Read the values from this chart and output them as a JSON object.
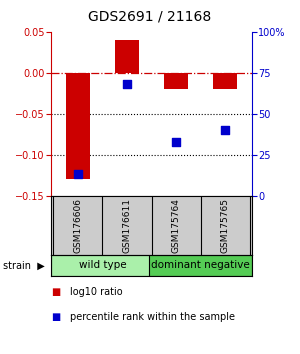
{
  "title": "GDS2691 / 21168",
  "samples": [
    "GSM176606",
    "GSM176611",
    "GSM175764",
    "GSM175765"
  ],
  "log10_ratio": [
    -0.13,
    0.04,
    -0.02,
    -0.02
  ],
  "percentile_rank": [
    13,
    68,
    33,
    40
  ],
  "ylim_left": [
    -0.15,
    0.05
  ],
  "ylim_right": [
    0,
    100
  ],
  "yticks_left": [
    -0.15,
    -0.1,
    -0.05,
    0,
    0.05
  ],
  "yticks_right": [
    0,
    25,
    50,
    75,
    100
  ],
  "ytick_labels_right": [
    "0",
    "25",
    "50",
    "75",
    "100%"
  ],
  "hlines": [
    -0.05,
    -0.1
  ],
  "groups": [
    {
      "label": "wild type",
      "samples": [
        0,
        1
      ],
      "color": "#aaf0aa"
    },
    {
      "label": "dominant negative",
      "samples": [
        2,
        3
      ],
      "color": "#55cc55"
    }
  ],
  "bar_color": "#cc0000",
  "dot_color": "#0000cc",
  "bar_width": 0.5,
  "dot_size": 40,
  "strain_label": "strain",
  "legend_bar_label": "log10 ratio",
  "legend_dot_label": "percentile rank within the sample",
  "title_fontsize": 10,
  "tick_fontsize": 7,
  "sample_label_fontsize": 6.5,
  "group_label_fontsize": 7.5,
  "legend_fontsize": 7,
  "background_color": "#ffffff",
  "zero_line_color": "#cc0000",
  "dotted_line_color": "#000000",
  "sample_box_color": "#cccccc"
}
